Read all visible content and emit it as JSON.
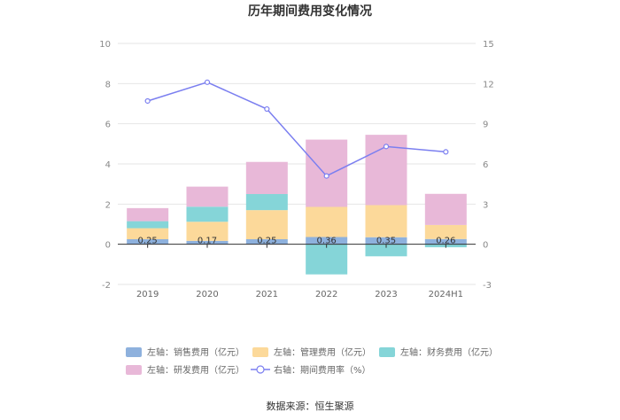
{
  "chart_data": {
    "type": "bar",
    "title": "历年期间费用变化情况",
    "categories": [
      "2019",
      "2020",
      "2021",
      "2022",
      "2023",
      "2024H1"
    ],
    "left_axis": {
      "min": -2,
      "max": 10,
      "ticks": [
        "10",
        "8",
        "6",
        "4",
        "2",
        "0",
        "-2"
      ]
    },
    "right_axis": {
      "min": -3,
      "max": 15,
      "ticks": [
        "15",
        "12",
        "9",
        "6",
        "3",
        "0",
        "-3"
      ]
    },
    "series": [
      {
        "name": "左轴：销售费用（亿元）",
        "kind": "bar",
        "color": "#8eb1dd",
        "values": [
          0.25,
          0.17,
          0.25,
          0.36,
          0.35,
          0.26
        ]
      },
      {
        "name": "左轴：管理费用（亿元）",
        "kind": "bar",
        "color": "#fcd99a",
        "values": [
          0.55,
          0.95,
          1.45,
          1.5,
          1.6,
          0.7
        ]
      },
      {
        "name": "左轴：财务费用（亿元）",
        "kind": "bar",
        "color": "#85d5d8",
        "values": [
          0.35,
          0.75,
          0.8,
          -1.5,
          -0.6,
          -0.15
        ]
      },
      {
        "name": "左轴：研发费用（亿元）",
        "kind": "bar",
        "color": "#e8b8d8",
        "values": [
          0.65,
          1.0,
          1.6,
          3.35,
          3.5,
          1.55
        ]
      },
      {
        "name": "右轴：期间费用率（%）",
        "kind": "line",
        "color": "#7b7ff0",
        "values": [
          10.7,
          12.1,
          10.1,
          5.1,
          7.3,
          6.9
        ]
      }
    ],
    "data_labels": [
      "0.25",
      "0.17",
      "0.25",
      "0.36",
      "0.35",
      "0.26"
    ],
    "legend_position": "bottom"
  },
  "source": "数据来源：恒生聚源"
}
